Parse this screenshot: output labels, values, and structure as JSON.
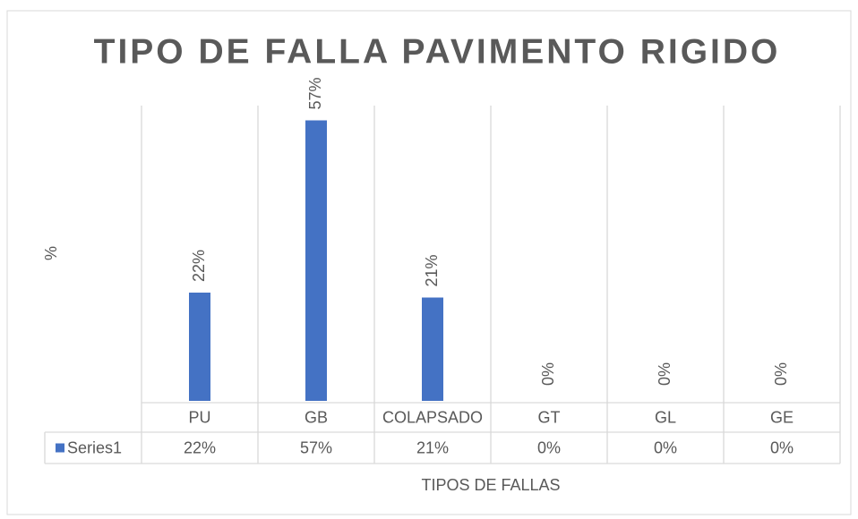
{
  "chart_data": {
    "type": "bar",
    "title": "TIPO DE FALLA PAVIMENTO RIGIDO",
    "ylabel": "%",
    "xlabel": "TIPOS DE FALLAS",
    "categories": [
      "PU",
      "GB",
      "COLAPSADO",
      "GT",
      "GL",
      "GE"
    ],
    "series": [
      {
        "name": "Series1",
        "color": "#4472c4",
        "values": [
          22,
          57,
          21,
          0,
          0,
          0
        ],
        "value_labels": [
          "22%",
          "57%",
          "21%",
          "0%",
          "0%",
          "0%"
        ]
      }
    ],
    "ylim": [
      0,
      60
    ]
  }
}
